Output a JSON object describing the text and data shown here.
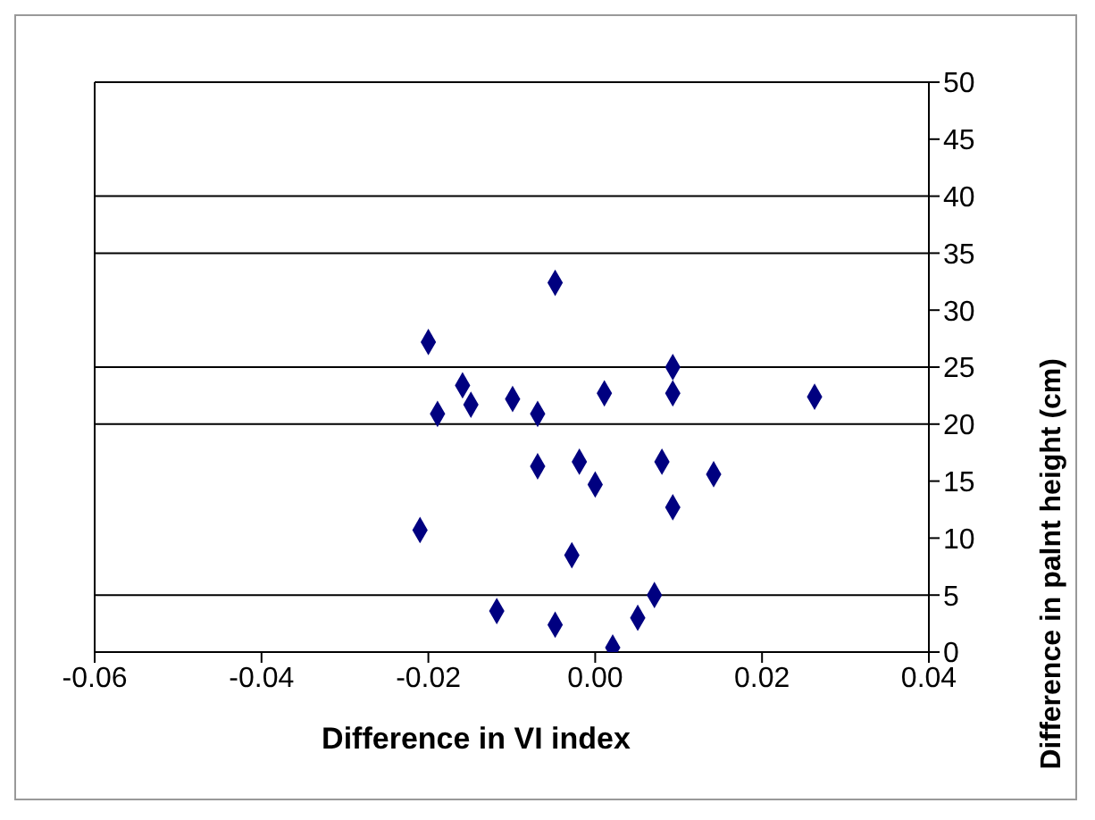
{
  "chart_data": {
    "type": "scatter",
    "xlabel": "Difference in VI index",
    "ylabel": "Difference in palnt height (cm)",
    "xlim": [
      -0.06,
      0.04
    ],
    "xticks": [
      -0.06,
      -0.04,
      -0.02,
      {
        "value": 0,
        "label": "0.00"
      },
      0.02,
      0.04
    ],
    "ylim": [
      0,
      50
    ],
    "yticks": [
      0,
      5,
      10,
      15,
      20,
      25,
      30,
      35,
      40,
      45,
      50
    ],
    "grid": false,
    "legend": false,
    "marker": "diamond",
    "ref_lines": [
      {
        "axis": "y",
        "value": 5,
        "color": "#000000"
      },
      {
        "axis": "y",
        "value": 20,
        "color": "#000000"
      },
      {
        "axis": "y",
        "value": 25,
        "color": "#000000"
      },
      {
        "axis": "y",
        "value": 35,
        "color": "#000000"
      },
      {
        "axis": "y",
        "value": 40,
        "color": "#000000"
      }
    ],
    "series": [
      {
        "color": "#000080",
        "x": [
          -0.02,
          0.0093,
          -0.0159,
          -0.0189,
          -0.0149,
          -0.0099,
          -0.0069,
          0.0011,
          0.0093,
          0.0263,
          -0.0069,
          -0.0019,
          0.0,
          0.008,
          0.0142,
          0.0093,
          -0.021,
          -0.0028,
          0.0071,
          -0.0118,
          -0.0048,
          0.0051,
          0.0021,
          -0.0048
        ],
        "values": [
          27.2,
          25.0,
          23.4,
          20.9,
          21.7,
          22.2,
          20.9,
          22.7,
          22.7,
          22.4,
          16.3,
          16.7,
          14.7,
          16.7,
          15.6,
          12.7,
          10.7,
          8.5,
          5.0,
          3.6,
          2.4,
          3.0,
          0.4,
          32.4
        ]
      }
    ]
  }
}
